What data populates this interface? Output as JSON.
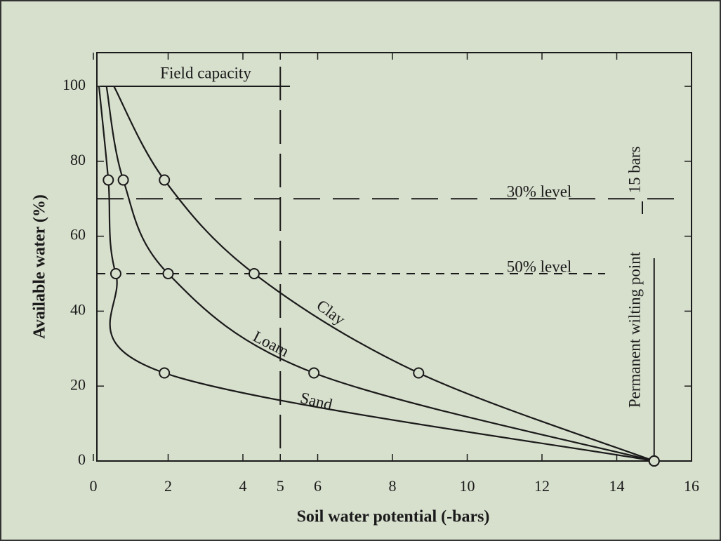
{
  "chart_data": {
    "type": "line",
    "x_label": "Soil water potential (-bars)",
    "y_label": "Available water (%)",
    "xlim": [
      0,
      16
    ],
    "xticks": [
      0,
      2,
      4,
      5,
      6,
      8,
      10,
      12,
      14,
      16
    ],
    "ylim": [
      0,
      109
    ],
    "yticks": [
      0,
      20,
      40,
      60,
      80,
      100
    ],
    "color": "#1a1a1a",
    "series": [
      {
        "name": "Clay",
        "x": [
          0.55,
          1.9,
          4.3,
          8.7,
          15
        ],
        "values": [
          100,
          75,
          50,
          23.5,
          0
        ]
      },
      {
        "name": "Loam",
        "x": [
          0.35,
          0.8,
          2.0,
          5.9,
          15
        ],
        "values": [
          100,
          75,
          50,
          23.5,
          0
        ]
      },
      {
        "name": "Sand",
        "x": [
          0.15,
          0.4,
          0.6,
          1.9,
          15
        ],
        "values": [
          100,
          75,
          50,
          23.5,
          0
        ]
      }
    ],
    "annotations": [
      {
        "text": "Field capacity",
        "y": 100
      },
      {
        "x": 5
      },
      {
        "text": "30% level",
        "y": 70
      },
      {
        "text": "50% level",
        "y": 50
      },
      {
        "text": "Permanent wilting point",
        "x": 15
      },
      {
        "text": "15 bars"
      }
    ]
  }
}
